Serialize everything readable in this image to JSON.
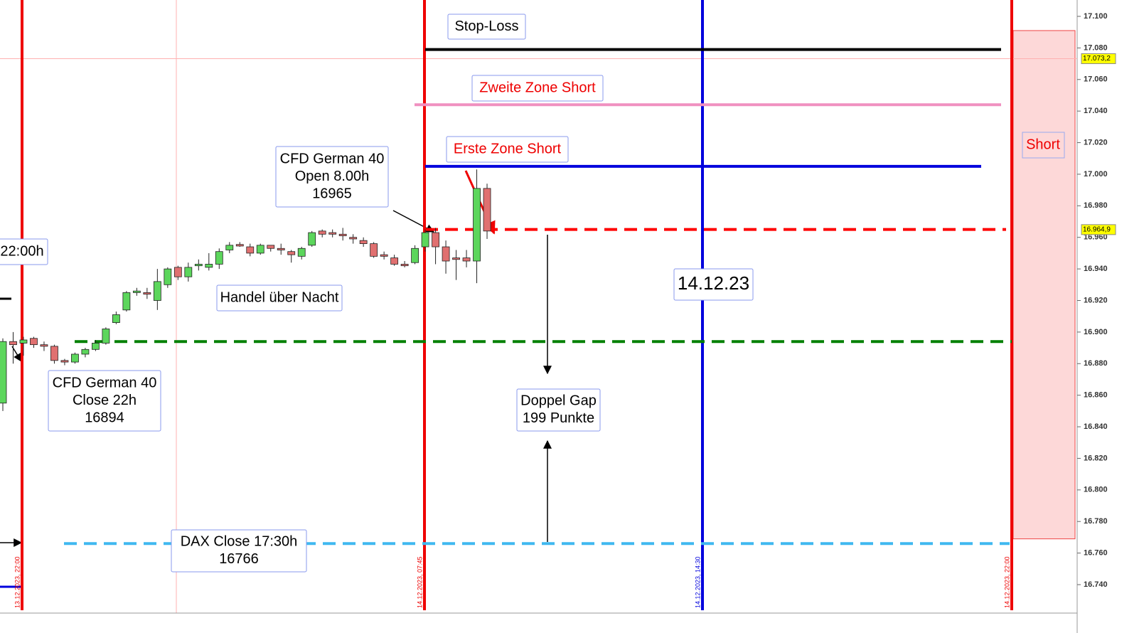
{
  "chart_data": {
    "type": "candlestick",
    "ylim": [
      16724,
      17110
    ],
    "yticks": [
      {
        "value": 17100,
        "label": "17.100"
      },
      {
        "value": 17080,
        "label": "17.080"
      },
      {
        "value": 17060,
        "label": "17.060"
      },
      {
        "value": 17040,
        "label": "17.040"
      },
      {
        "value": 17020,
        "label": "17.020"
      },
      {
        "value": 17000,
        "label": "17.000"
      },
      {
        "value": 16980,
        "label": "16.980"
      },
      {
        "value": 16960,
        "label": "16.960"
      },
      {
        "value": 16940,
        "label": "16.940"
      },
      {
        "value": 16920,
        "label": "16.920"
      },
      {
        "value": 16900,
        "label": "16.900"
      },
      {
        "value": 16880,
        "label": "16.880"
      },
      {
        "value": 16860,
        "label": "16.860"
      },
      {
        "value": 16840,
        "label": "16.840"
      },
      {
        "value": 16820,
        "label": "16.820"
      },
      {
        "value": 16800,
        "label": "16.800"
      },
      {
        "value": 16780,
        "label": "16.780"
      },
      {
        "value": 16760,
        "label": "16.760"
      },
      {
        "value": 16740,
        "label": "16.740"
      }
    ],
    "price_labels": [
      {
        "value": 17073.2,
        "label": "17.073,2"
      },
      {
        "value": 16964.9,
        "label": "16.964,9"
      }
    ],
    "up_color": "#5cd65c",
    "down_color": "#e07070",
    "candles": {
      "open": [
        16855,
        16894,
        16893,
        16896,
        16892,
        16891,
        16882,
        16881,
        16886,
        16889,
        16893,
        16906,
        16914,
        16925,
        16925,
        16920,
        16930,
        16941,
        16935,
        16942,
        16941,
        16943,
        16952,
        16955.5,
        16954,
        16950,
        16955,
        16953,
        16951,
        16948,
        16955,
        16964,
        16963,
        16962,
        16960,
        16958,
        16956,
        16949,
        16947,
        16943,
        16944,
        16954,
        16963,
        16954,
        16947,
        16947,
        16945,
        16991
      ],
      "high": [
        16896,
        16900,
        16897,
        16897,
        16894,
        16892,
        16883,
        16887,
        16890,
        16895,
        16903,
        16913,
        16926,
        16928,
        16928,
        16940,
        16941,
        16942,
        16944,
        16946,
        16950,
        16953,
        16957,
        16957,
        16956,
        16956,
        16955,
        16956,
        16952,
        16954,
        16964,
        16965,
        16965,
        16966,
        16962,
        16960,
        16957,
        16951,
        16949,
        16945,
        16955,
        16965,
        16966,
        16958,
        16952,
        16952,
        17003,
        16994
      ],
      "low": [
        16850,
        16880,
        16885,
        16890,
        16888,
        16880,
        16879,
        16880,
        16884,
        16888,
        16892,
        16905,
        16913,
        16923,
        16921,
        16914,
        16928,
        16933,
        16932,
        16939,
        16939,
        16940,
        16950,
        16954,
        16948,
        16949,
        16951,
        16949,
        16944,
        16946,
        16954,
        16960,
        16960,
        16958,
        16956,
        16954,
        16947,
        16946,
        16942,
        16941,
        16943,
        16951,
        16943,
        16937,
        16933,
        16941,
        16931,
        16959
      ],
      "close": [
        16894,
        16892,
        16895,
        16892,
        16891,
        16882,
        16881,
        16886,
        16889,
        16893,
        16902,
        16911,
        16925,
        16926,
        16924,
        16932,
        16940,
        16935,
        16941,
        16943,
        16943,
        16951,
        16955,
        16954.5,
        16950,
        16955,
        16953,
        16952,
        16949,
        16953,
        16963,
        16962,
        16962,
        16961,
        16959,
        16956,
        16948,
        16948,
        16943,
        16942,
        16953,
        16963,
        16954,
        16945,
        16946,
        16945,
        16991,
        16964
      ]
    },
    "levels": [
      {
        "value": 17079,
        "color": "#000000",
        "dashed": false
      },
      {
        "value": 17044,
        "color": "#f090c0",
        "dashed": false
      },
      {
        "value": 17005,
        "color": "#0000dd",
        "dashed": false
      },
      {
        "value": 16965,
        "color": "#ff0000",
        "dashed": true
      },
      {
        "value": 16894,
        "color": "#008000",
        "dashed": true
      },
      {
        "value": 16766,
        "color": "#40b8f0",
        "dashed": true
      }
    ],
    "time_markers": [
      {
        "label": "13.12.2023, 22:00",
        "color": "#ee0000"
      },
      {
        "label": "14.12.2023, 07:45",
        "color": "#ee0000"
      },
      {
        "label": "14.12.2023, 14:30",
        "color": "#0000dd"
      },
      {
        "label": "14.12.2023, 22:00",
        "color": "#ee0000"
      }
    ],
    "short_zone": {
      "label": "Short",
      "range": [
        16769,
        17091
      ]
    },
    "annotations": [
      {
        "lines": [
          "Stop-Loss"
        ],
        "color": "#000000"
      },
      {
        "lines": [
          "Zweite Zone Short"
        ],
        "color": "#ee0000"
      },
      {
        "lines": [
          "Erste Zone Short"
        ],
        "color": "#ee0000"
      },
      {
        "lines": [
          "CFD German 40",
          "Open 8.00h",
          "16965"
        ],
        "color": "#000000"
      },
      {
        "lines": [
          "22:00h"
        ],
        "color": "#000000"
      },
      {
        "lines": [
          "Handel über Nacht"
        ],
        "color": "#000000"
      },
      {
        "lines": [
          "14.12.23"
        ],
        "color": "#000000"
      },
      {
        "lines": [
          "CFD German 40",
          "Close 22h",
          "16894"
        ],
        "color": "#000000"
      },
      {
        "lines": [
          "Doppel Gap",
          "199 Punkte"
        ],
        "color": "#000000"
      },
      {
        "lines": [
          "DAX Close 17:30h",
          "16766"
        ],
        "color": "#000000"
      }
    ]
  }
}
